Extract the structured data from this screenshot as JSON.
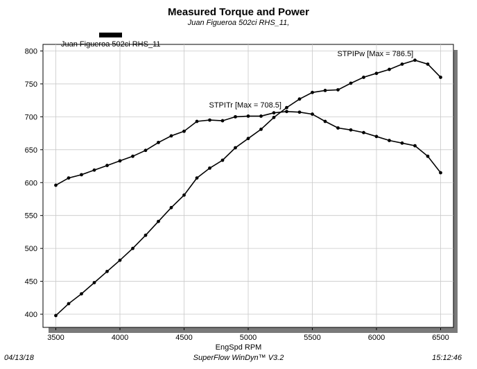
{
  "chart_data": {
    "type": "line",
    "title": "Measured Torque and Power",
    "subtitle": "Juan Figueroa 502ci RHS_11,",
    "xlabel": "EngSpd RPM",
    "ylabel": "",
    "xlim": [
      3400,
      6600
    ],
    "ylim": [
      380,
      810
    ],
    "x_ticks": [
      3500,
      4000,
      4500,
      5000,
      5500,
      6000,
      6500
    ],
    "y_ticks": [
      400,
      450,
      500,
      550,
      600,
      650,
      700,
      750,
      800
    ],
    "grid": true,
    "legend": {
      "entries": [
        {
          "label": "Juan Figueroa 502ci RHS_11",
          "color": "#000000"
        }
      ],
      "placement": "top-left"
    },
    "x": [
      3500,
      3600,
      3700,
      3800,
      3900,
      4000,
      4100,
      4200,
      4300,
      4400,
      4500,
      4600,
      4700,
      4800,
      4900,
      5000,
      5100,
      5200,
      5300,
      5400,
      5500,
      5600,
      5700,
      5800,
      5900,
      6000,
      6100,
      6200,
      6300,
      6400,
      6500
    ],
    "series": [
      {
        "name": "STPITr",
        "annotation": "STPITr [Max = 708.5]",
        "values": [
          596,
          607,
          612,
          619,
          626,
          633,
          640,
          649,
          661,
          671,
          678,
          693,
          695,
          694,
          700,
          701,
          701,
          706,
          708,
          707,
          704,
          693,
          683,
          680,
          676,
          670,
          664,
          660,
          656,
          640,
          615
        ]
      },
      {
        "name": "STPIPw",
        "annotation": "STPIPw [Max = 786.5]",
        "values": [
          398,
          416,
          431,
          448,
          465,
          482,
          500,
          520,
          541,
          562,
          581,
          607,
          622,
          634,
          653,
          667,
          681,
          699,
          714,
          727,
          737,
          740,
          741,
          751,
          760,
          766,
          772,
          780,
          786,
          780,
          760
        ]
      }
    ]
  },
  "footer": {
    "date": "04/13/18",
    "app": "SuperFlow WinDyn™ V3.2",
    "time": "15:12:46"
  }
}
